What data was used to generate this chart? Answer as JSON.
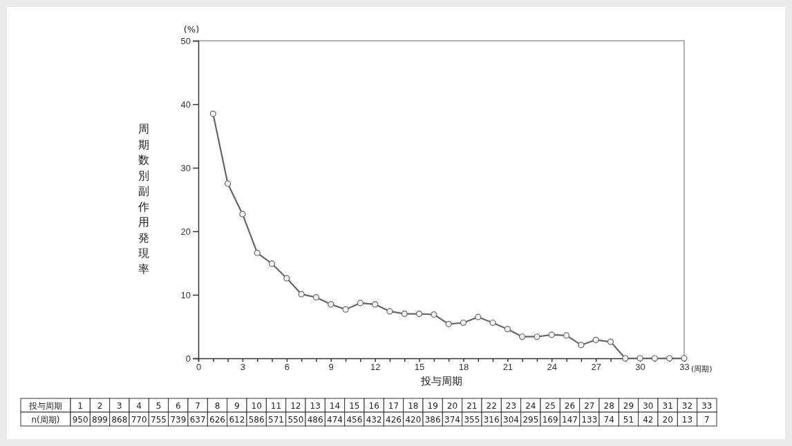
{
  "chart_data": {
    "type": "line",
    "xlabel": "投与周期",
    "ylabel": "周期数別副作用発現率",
    "x": [
      1,
      2,
      3,
      4,
      5,
      6,
      7,
      8,
      9,
      10,
      11,
      12,
      13,
      14,
      15,
      16,
      17,
      18,
      19,
      20,
      21,
      22,
      23,
      24,
      25,
      26,
      27,
      28,
      29,
      30,
      31,
      32,
      33
    ],
    "series": [
      {
        "color": "#666666",
        "values": [
          38.5,
          27.5,
          22.7,
          16.6,
          14.9,
          12.6,
          10.1,
          9.6,
          8.5,
          7.7,
          8.7,
          8.5,
          7.4,
          7.0,
          7.0,
          6.9,
          5.4,
          5.6,
          6.5,
          5.6,
          4.6,
          3.4,
          3.4,
          3.7,
          3.6,
          2.1,
          2.9,
          2.6,
          0,
          0,
          0,
          0,
          0
        ]
      }
    ],
    "xlim": [
      0,
      33
    ],
    "xticks": [
      0,
      3,
      6,
      9,
      12,
      15,
      18,
      21,
      24,
      27,
      30,
      33
    ],
    "ylim": [
      0,
      50
    ],
    "yticks": [
      0,
      10,
      20,
      30,
      40,
      50
    ],
    "marker": "circle",
    "grid": false,
    "annotations": [
      "(%)",
      "(周期)",
      "投与周期",
      "1",
      "2",
      "3",
      "4",
      "5",
      "6",
      "7",
      "8",
      "9",
      "10",
      "11",
      "12",
      "13",
      "14",
      "15",
      "16",
      "17",
      "18",
      "19",
      "20",
      "21",
      "22",
      "23",
      "24",
      "25",
      "26",
      "27",
      "28",
      "29",
      "30",
      "31",
      "32",
      "33",
      "n(周期)",
      "950",
      "899",
      "868",
      "770",
      "755",
      "739",
      "637",
      "626",
      "612",
      "586",
      "571",
      "550",
      "486",
      "474",
      "456",
      "432",
      "426",
      "420",
      "386",
      "374",
      "355",
      "316",
      "304",
      "295",
      "169",
      "147",
      "133",
      "74",
      "51",
      "42",
      "20",
      "13",
      "7"
    ]
  }
}
